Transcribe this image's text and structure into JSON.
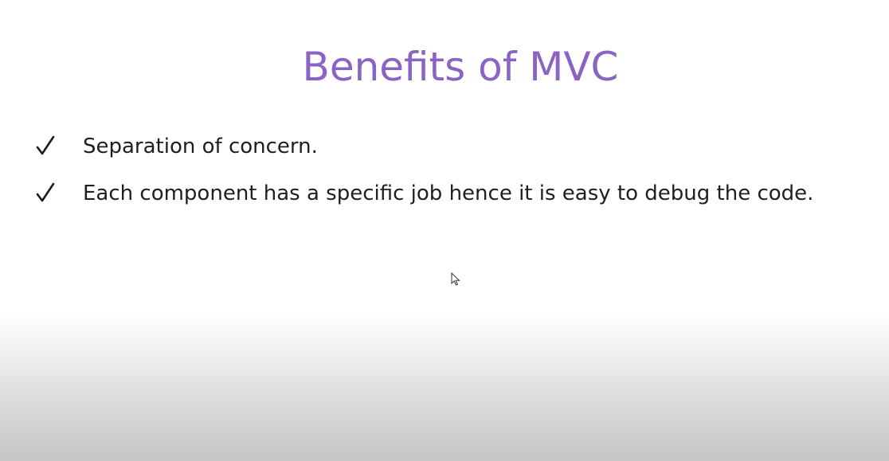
{
  "slide": {
    "title": "Benefits of MVC",
    "bullets": [
      {
        "icon": "check-icon",
        "text": "Separation of concern."
      },
      {
        "icon": "check-icon",
        "text": "Each component has a specific job hence it is easy to debug the code."
      }
    ]
  },
  "colors": {
    "title": "#8a63c4",
    "text": "#1f1f1f",
    "background": "#ffffff"
  },
  "icons": {
    "cursor": "mouse-pointer-icon"
  }
}
